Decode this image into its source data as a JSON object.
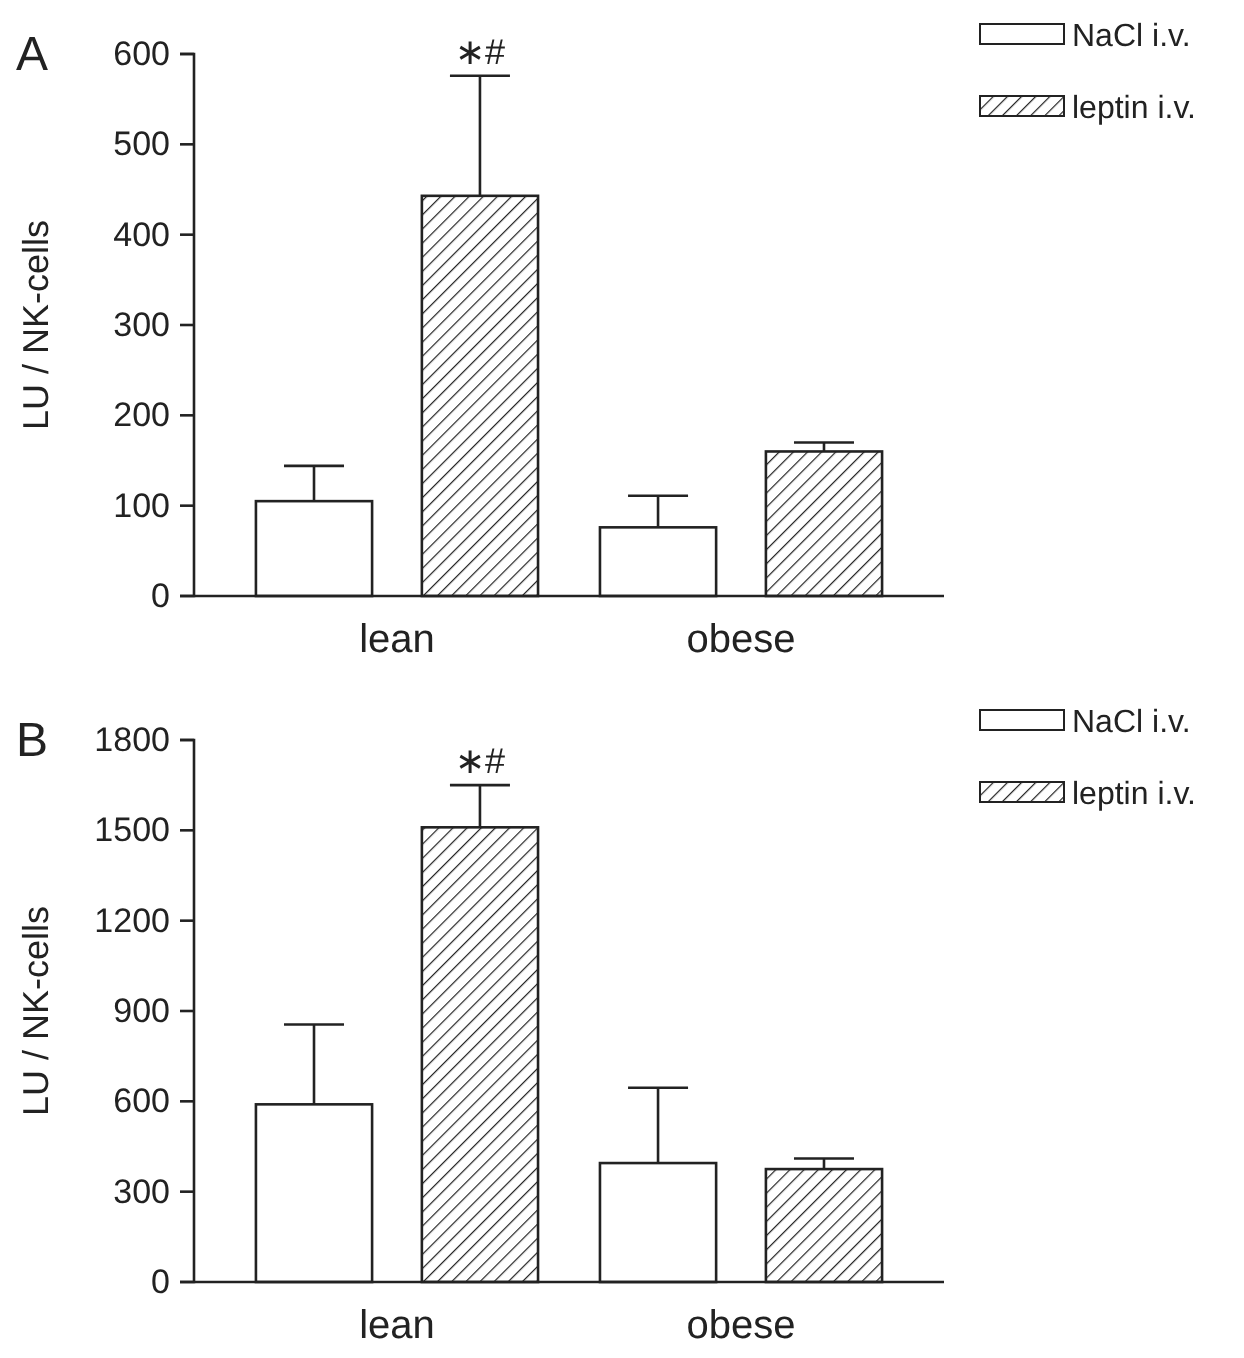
{
  "chart_data": [
    {
      "type": "bar",
      "title": "A",
      "ylabel": "LU / NK-cells",
      "categories": [
        "lean",
        "obese"
      ],
      "series": [
        {
          "name": "NaCl i.v.",
          "color": "#ffffff",
          "values": [
            105,
            76
          ],
          "errors": [
            [
              105,
              144
            ],
            [
              76,
              111
            ]
          ]
        },
        {
          "name": "leptin i.v.",
          "color": "#222222",
          "values": [
            443,
            160
          ],
          "errors": [
            [
              443,
              576
            ],
            [
              160,
              170
            ]
          ]
        }
      ],
      "ylim": [
        0,
        600
      ],
      "yticks": [
        0,
        100,
        200,
        300,
        400,
        500,
        600
      ],
      "legend": "top right",
      "grid": false,
      "annotations": [
        "∗#"
      ]
    },
    {
      "type": "bar",
      "title": "B",
      "ylabel": "LU / NK-cells",
      "categories": [
        "lean",
        "obese"
      ],
      "series": [
        {
          "name": "NaCl i.v.",
          "color": "#ffffff",
          "values": [
            590,
            395
          ],
          "errors": [
            [
              590,
              855
            ],
            [
              395,
              645
            ]
          ]
        },
        {
          "name": "leptin i.v.",
          "color": "#222222",
          "values": [
            1510,
            375
          ],
          "errors": [
            [
              1510,
              1650
            ],
            [
              375,
              410
            ]
          ]
        }
      ],
      "ylim": [
        0,
        1800
      ],
      "yticks": [
        0,
        300,
        600,
        900,
        1200,
        1500,
        1800
      ],
      "legend": "top right",
      "grid": false,
      "annotations": [
        "∗#"
      ]
    }
  ]
}
